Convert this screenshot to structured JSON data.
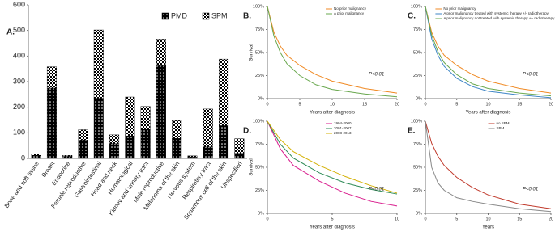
{
  "chart_data": [
    {
      "type": "bar",
      "panel_label": "A.",
      "stacked": true,
      "legend": "upper right",
      "categories": [
        "Bone and soft tissue",
        "Breast",
        "Endocrine",
        "Female reproductive",
        "Gastrointestinal",
        "Head and neck",
        "Hematological",
        "Kidney and urinary tract",
        "Male reproductive",
        "Melanoma of the skin",
        "Nervous system",
        "Respiratory tract",
        "Squamous cell of the skin",
        "Unspecified"
      ],
      "series": [
        {
          "name": "PMD",
          "color": "#000000",
          "pattern": "dots",
          "values": [
            12,
            275,
            8,
            72,
            235,
            58,
            88,
            115,
            362,
            78,
            6,
            45,
            128,
            20
          ]
        },
        {
          "name": "SPM",
          "color": "#000000",
          "pattern": "checker",
          "values": [
            6,
            83,
            4,
            40,
            267,
            34,
            152,
            88,
            104,
            70,
            4,
            148,
            260,
            57
          ]
        }
      ],
      "ylim": [
        0,
        600
      ],
      "yticks": [
        0,
        100,
        200,
        300,
        400,
        500,
        600
      ]
    },
    {
      "type": "line",
      "panel_label": "B.",
      "ylabel": "Survival",
      "xlabel": "Years after diagnosis",
      "annotation": "P<0.01",
      "legend": "upper right",
      "x": [
        0,
        1,
        2,
        3,
        5,
        7.5,
        10,
        15,
        20
      ],
      "series": [
        {
          "name": "No prior malignancy",
          "color": "#f08a24",
          "values": [
            100,
            72,
            57,
            47,
            36,
            26,
            19,
            11,
            6
          ]
        },
        {
          "name": "A prior malignancy",
          "color": "#6aa84f",
          "values": [
            100,
            68,
            50,
            38,
            25,
            15,
            10,
            5,
            2
          ]
        }
      ],
      "xlim": [
        0,
        20
      ],
      "xticks": [
        0,
        5,
        10,
        15,
        20
      ],
      "ylim": [
        0,
        100
      ],
      "yticks": [
        {
          "value": 0,
          "label": "0%"
        },
        {
          "value": 25,
          "label": "25%"
        },
        {
          "value": 50,
          "label": "50%"
        },
        {
          "value": 75,
          "label": "75%"
        },
        {
          "value": 100,
          "label": "100%"
        }
      ]
    },
    {
      "type": "line",
      "panel_label": "C.",
      "xlabel": "Years after diagnosis",
      "annotation": "P<0.01",
      "legend": "upper right",
      "x": [
        0,
        1,
        2,
        3,
        5,
        7.5,
        10,
        15,
        20
      ],
      "series": [
        {
          "name": "No prior malignancy",
          "color": "#f08a24",
          "values": [
            100,
            72,
            57,
            47,
            36,
            26,
            19,
            11,
            6
          ]
        },
        {
          "name": "A prior malignancy treated with systemic therapy +/- radiotherapy",
          "color": "#3d85c6",
          "values": [
            100,
            65,
            47,
            35,
            22,
            13,
            8,
            4,
            1
          ]
        },
        {
          "name": "A prior malignancy not treated with systemic therapy +/- radiotherapy",
          "color": "#6aa84f",
          "values": [
            100,
            69,
            51,
            39,
            26,
            16,
            11,
            6,
            3
          ]
        }
      ],
      "xlim": [
        0,
        20
      ],
      "xticks": [
        0,
        5,
        10,
        15,
        20
      ],
      "ylim": [
        0,
        100
      ],
      "yticks": [
        {
          "value": 0,
          "label": "0%"
        },
        {
          "value": 25,
          "label": "25%"
        },
        {
          "value": 50,
          "label": "50%"
        },
        {
          "value": 75,
          "label": "75%"
        },
        {
          "value": 100,
          "label": "100%"
        }
      ]
    },
    {
      "type": "line",
      "panel_label": "D.",
      "ylabel": "Survival",
      "xlabel": "Years after diagnosis",
      "annotation": "P<0.01",
      "legend": "upper right",
      "x": [
        0,
        1,
        2,
        4,
        6,
        8,
        10
      ],
      "series": [
        {
          "name": "1994-2000",
          "color": "#d81b8c",
          "values": [
            100,
            70,
            52,
            35,
            22,
            13,
            8
          ]
        },
        {
          "name": "2001-2007",
          "color": "#2e8b57",
          "values": [
            100,
            75,
            60,
            44,
            33,
            26,
            21
          ]
        },
        {
          "name": "2008-2013",
          "color": "#d4b106",
          "values": [
            100,
            80,
            67,
            52,
            40,
            30,
            22
          ]
        }
      ],
      "xlim": [
        0,
        10
      ],
      "xticks": [
        0,
        5,
        10
      ],
      "ylim": [
        0,
        100
      ],
      "yticks": [
        {
          "value": 0,
          "label": "0%"
        },
        {
          "value": 25,
          "label": "25%"
        },
        {
          "value": 50,
          "label": "50%"
        },
        {
          "value": 75,
          "label": "75%"
        },
        {
          "value": 100,
          "label": "100%"
        }
      ]
    },
    {
      "type": "line",
      "panel_label": "E.",
      "xlabel": "Years",
      "annotation": "P<0.01",
      "legend": "upper right",
      "x": [
        0,
        1,
        2,
        3,
        5,
        7.5,
        10,
        15,
        20
      ],
      "series": [
        {
          "name": "no SPM",
          "color": "#c0392b",
          "values": [
            100,
            76,
            62,
            52,
            39,
            28,
            20,
            10,
            5
          ]
        },
        {
          "name": "SPM",
          "color": "#888888",
          "values": [
            100,
            50,
            33,
            25,
            17,
            13,
            10,
            5,
            2
          ]
        }
      ],
      "xlim": [
        0,
        20
      ],
      "xticks": [
        0,
        5,
        10,
        15,
        20
      ],
      "ylim": [
        0,
        100
      ],
      "yticks": [
        {
          "value": 0,
          "label": "0%"
        },
        {
          "value": 25,
          "label": "25%"
        },
        {
          "value": 50,
          "label": "50%"
        },
        {
          "value": 75,
          "label": "75%"
        },
        {
          "value": 100,
          "label": "100%"
        }
      ]
    }
  ]
}
